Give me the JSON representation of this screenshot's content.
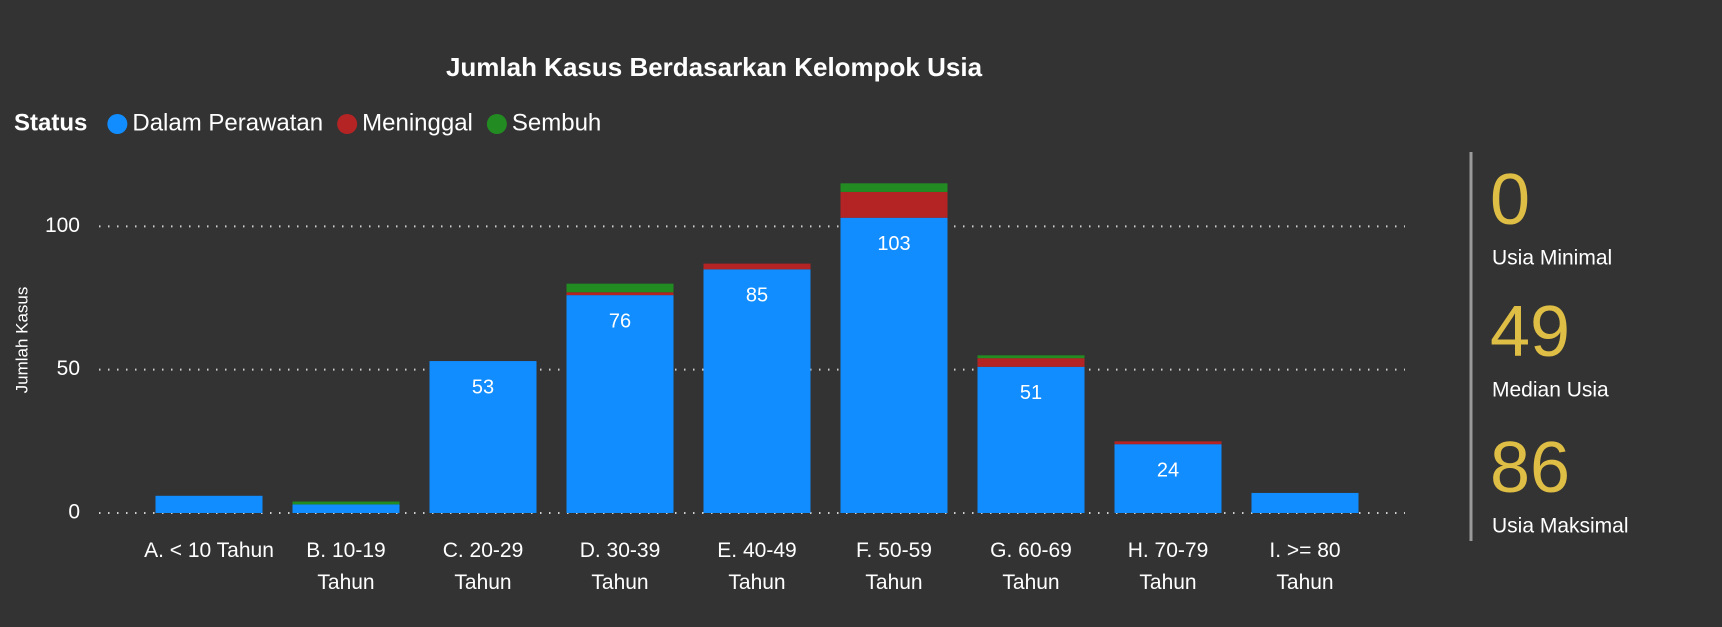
{
  "chart_data": {
    "type": "stacked_bar",
    "title": "Jumlah Kasus Berdasarkan Kelompok Usia",
    "y_label": "Jumlah Kasus",
    "legend_title": "Status",
    "categories": [
      "A. < 10 Tahun",
      "B. 10-19 Tahun",
      "C. 20-29 Tahun",
      "D. 30-39 Tahun",
      "E. 40-49 Tahun",
      "F. 50-59 Tahun",
      "G. 60-69 Tahun",
      "H. 70-79 Tahun",
      "I. >= 80 Tahun"
    ],
    "series": [
      {
        "name": "Dalam Perawatan",
        "color": "#118dff",
        "values": [
          6,
          3,
          53,
          76,
          85,
          103,
          51,
          24,
          7
        ]
      },
      {
        "name": "Meninggal",
        "color": "#b42424",
        "values": [
          0,
          0,
          0,
          1,
          2,
          9,
          3,
          1,
          0
        ]
      },
      {
        "name": "Sembuh",
        "color": "#228b22",
        "values": [
          0,
          1,
          0,
          3,
          0,
          3,
          1,
          0,
          0
        ]
      }
    ],
    "ylim": [
      0,
      120
    ],
    "yticks": [
      0,
      50,
      100
    ],
    "grid": true
  },
  "kpis": [
    {
      "value": 0,
      "label": "Usia Minimal"
    },
    {
      "value": 49,
      "label": "Median Usia"
    },
    {
      "value": 86,
      "label": "Usia Maksimal"
    }
  ]
}
